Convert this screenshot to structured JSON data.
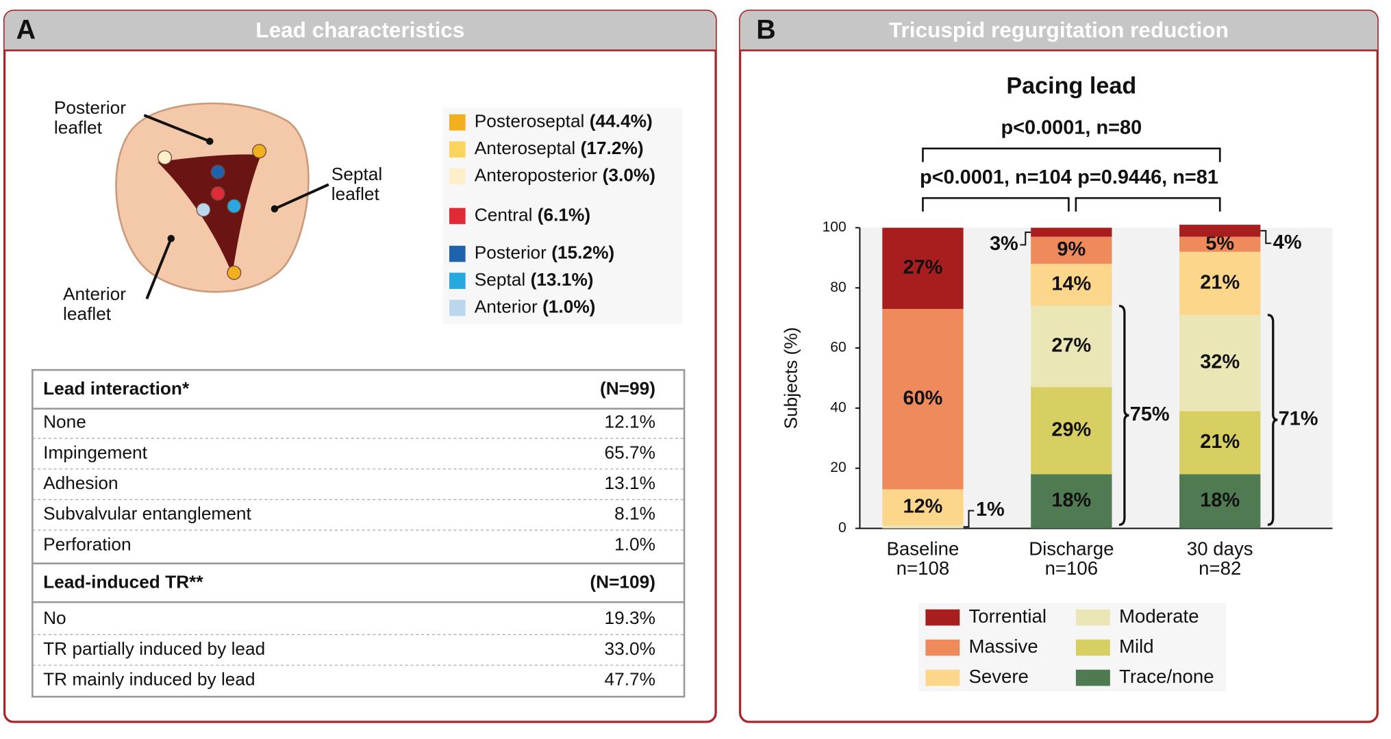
{
  "panel_a": {
    "letter": "A",
    "title": "Lead characteristics",
    "diagram_labels": [
      [
        "Posterior",
        "leaflet"
      ],
      [
        "Septal",
        "leaflet"
      ],
      [
        "Anterior",
        "leaflet"
      ]
    ],
    "valve_legend": [
      {
        "name": "Posteroseptal",
        "value": "(44.4%)",
        "color": "#f2b01e"
      },
      {
        "name": "Anteroseptal",
        "value": "(17.2%)",
        "color": "#fbd45e"
      },
      {
        "name": "Anteroposterior",
        "value": "(3.0%)",
        "color": "#fcefc9"
      },
      {
        "name": "Central",
        "value": "(6.1%)",
        "color": "#e02b36"
      },
      {
        "name": "Posterior",
        "value": "(15.2%)",
        "color": "#1f63ae"
      },
      {
        "name": "Septal",
        "value": "(13.1%)",
        "color": "#27a8e0"
      },
      {
        "name": "Anterior",
        "value": "(1.0%)",
        "color": "#bcd6ee"
      }
    ],
    "table": {
      "sections": [
        {
          "header": [
            "Lead interaction*",
            "(N=99)"
          ],
          "rows": [
            [
              "None",
              "12.1%"
            ],
            [
              "Impingement",
              "65.7%"
            ],
            [
              "Adhesion",
              "13.1%"
            ],
            [
              "Subvalvular entanglement",
              "8.1%"
            ],
            [
              "Perforation",
              "1.0%"
            ]
          ]
        },
        {
          "header": [
            "Lead-induced TR**",
            "(N=109)"
          ],
          "rows": [
            [
              "No",
              "19.3%"
            ],
            [
              "TR partially induced by lead",
              "33.0%"
            ],
            [
              "TR mainly induced by lead",
              "47.7%"
            ]
          ]
        }
      ]
    }
  },
  "chart_data": {
    "type": "stacked_bar",
    "letter": "B",
    "panel_title": "Tricuspid regurgitation reduction",
    "title": "Pacing lead",
    "comparisons": [
      "p<0.0001, n=80",
      "p<0.0001, n=104",
      "p=0.9446, n=81"
    ],
    "y_label": "Subjects (%)",
    "categories": [
      "Baseline",
      "Discharge",
      "30 days"
    ],
    "category_sublabels": [
      "n=108",
      "n=106",
      "n=82"
    ],
    "ylim": [
      0,
      100
    ],
    "yticks": [
      0,
      20,
      40,
      60,
      80,
      100
    ],
    "series": [
      {
        "name": "Trace/none",
        "color": "#4f7a52",
        "values": [
          0,
          18,
          18
        ],
        "value_labels": [
          null,
          "18%",
          "18%"
        ]
      },
      {
        "name": "Mild",
        "color": "#d8cf62",
        "values": [
          0,
          29,
          21
        ],
        "value_labels": [
          null,
          "29%",
          "21%"
        ]
      },
      {
        "name": "Moderate",
        "color": "#ebe6b6",
        "values": [
          1,
          27,
          32
        ],
        "value_labels": [
          "1%",
          "27%",
          "32%"
        ]
      },
      {
        "name": "Severe",
        "color": "#fcd68a",
        "values": [
          12,
          14,
          21
        ],
        "value_labels": [
          "12%",
          "14%",
          "21%"
        ]
      },
      {
        "name": "Massive",
        "color": "#ee8a5c",
        "values": [
          60,
          9,
          5
        ],
        "value_labels": [
          "60%",
          "9%",
          "5%"
        ]
      },
      {
        "name": "Torrential",
        "color": "#a81d1e",
        "values": [
          27,
          3,
          4
        ],
        "value_labels": [
          "27%",
          "3%",
          "4%"
        ]
      }
    ],
    "annotations": [
      "75%",
      "71%"
    ]
  }
}
